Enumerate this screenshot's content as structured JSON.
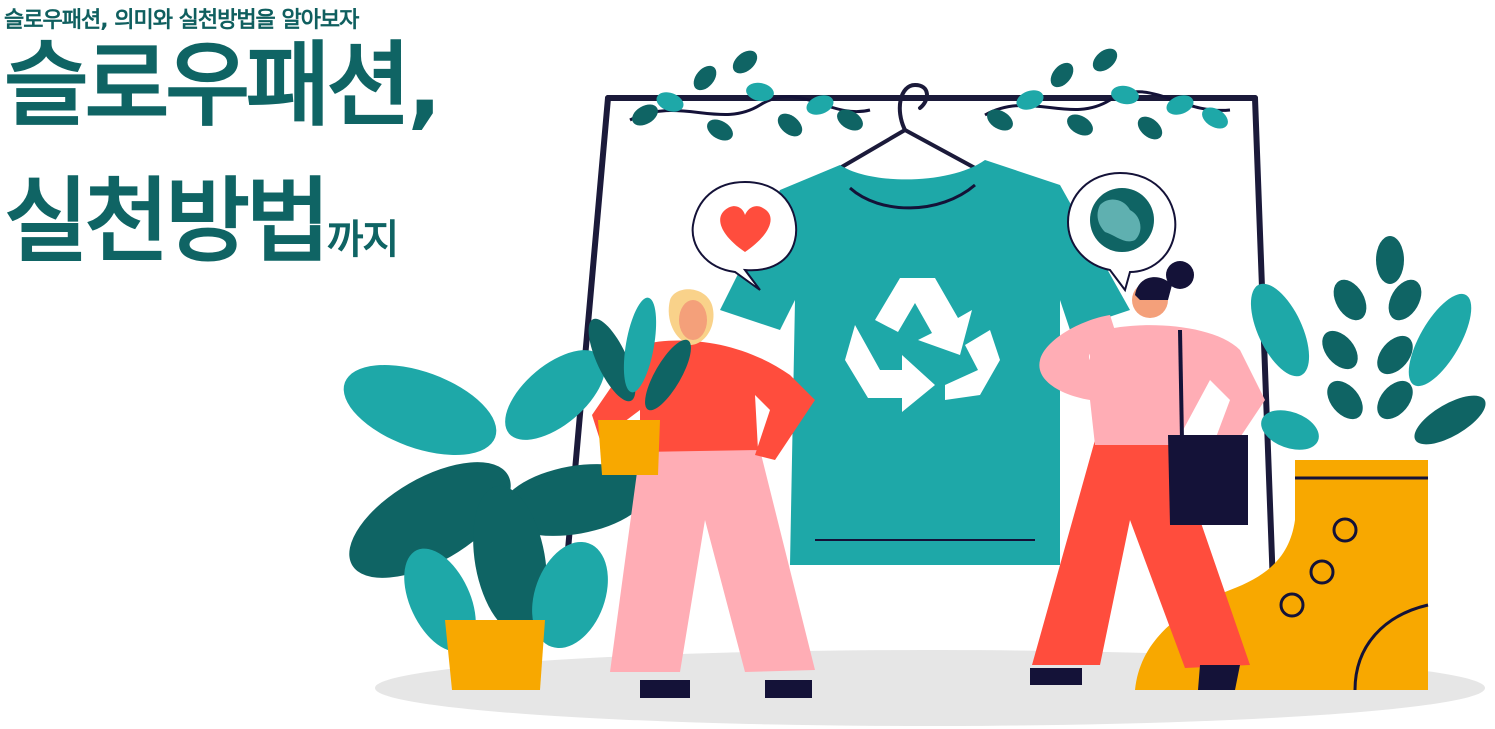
{
  "header": {
    "subtitle": "슬로우패션, 의미와 실천방법을 알아보자",
    "title_line1": "슬로우패션,",
    "title_line2_main": "실천방법",
    "title_line2_suffix": "까지"
  },
  "illustration": {
    "icons": [
      "heart-icon",
      "globe-icon",
      "recycle-icon"
    ],
    "colors": {
      "teal": "#1ea8a8",
      "dark_teal": "#0f6464",
      "coral": "#ff4d3d",
      "pink": "#ffadb5",
      "mustard": "#f8a800",
      "navy": "#141238",
      "ground": "#e6e6e6"
    }
  }
}
